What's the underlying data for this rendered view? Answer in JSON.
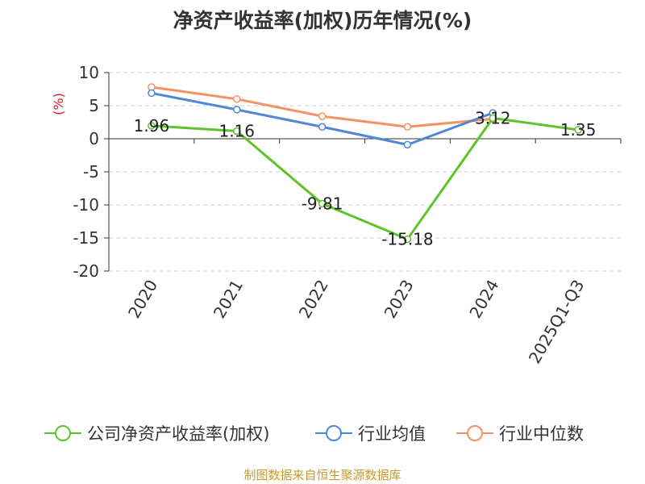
{
  "chart_data": {
    "type": "line",
    "title": "净资产收益率(加权)历年情况(%)",
    "ylabel": "(%)",
    "categories": [
      "2020",
      "2021",
      "2022",
      "2023",
      "2024",
      "2025Q1-Q3"
    ],
    "ylim": [
      -20,
      10
    ],
    "yticks": [
      10,
      5,
      0,
      -5,
      -10,
      -15,
      -20
    ],
    "grid": true,
    "legend_position": "bottom",
    "series": [
      {
        "name": "公司净资产收益率(加权)",
        "color": "#5cc42a",
        "values": [
          1.96,
          1.16,
          -9.81,
          -15.18,
          3.12,
          1.35
        ],
        "labels": [
          "1.96",
          "1.16",
          "-9.81",
          "-15.18",
          "3.12",
          "1.35"
        ]
      },
      {
        "name": "行业均值",
        "color": "#4f86d8",
        "values": [
          6.9,
          4.4,
          1.8,
          -0.9,
          3.9,
          null
        ]
      },
      {
        "name": "行业中位数",
        "color": "#f59263",
        "values": [
          7.8,
          6.0,
          3.4,
          1.8,
          3.0,
          null
        ]
      }
    ]
  },
  "footer": {
    "source": "制图数据来自恒生聚源数据库"
  }
}
